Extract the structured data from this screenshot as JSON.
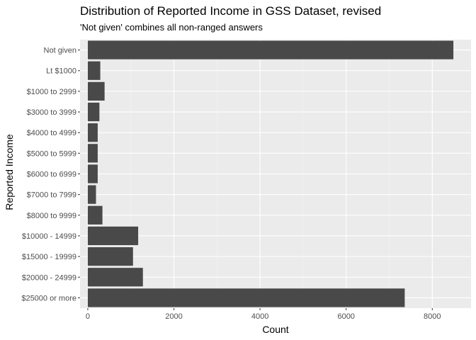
{
  "chart_data": {
    "type": "bar",
    "orientation": "horizontal",
    "title": "Distribution of Reported Income in GSS Dataset, revised",
    "subtitle": "'Not given' combines all non-ranged answers",
    "xlabel": "Count",
    "ylabel": "Reported Income",
    "xlim": [
      -180,
      8900
    ],
    "x_ticks": [
      0,
      2000,
      4000,
      6000,
      8000
    ],
    "grid": true,
    "categories": [
      "Not given",
      "Lt $1000",
      "$1000 to 2999",
      "$3000 to 3999",
      "$4000 to 4999",
      "$5000 to 5999",
      "$6000 to 6999",
      "$7000 to 7999",
      "$8000 to 9999",
      "$10000 - 14999",
      "$15000 - 19999",
      "$20000 - 24999",
      "$25000 or more"
    ],
    "values": [
      8490,
      290,
      390,
      270,
      230,
      230,
      230,
      190,
      340,
      1170,
      1050,
      1280,
      7360
    ],
    "colors": {
      "bar": "#494949",
      "panel": "#ebebeb",
      "grid_major": "#ffffff",
      "grid_minor": "#f4f4f4"
    }
  }
}
